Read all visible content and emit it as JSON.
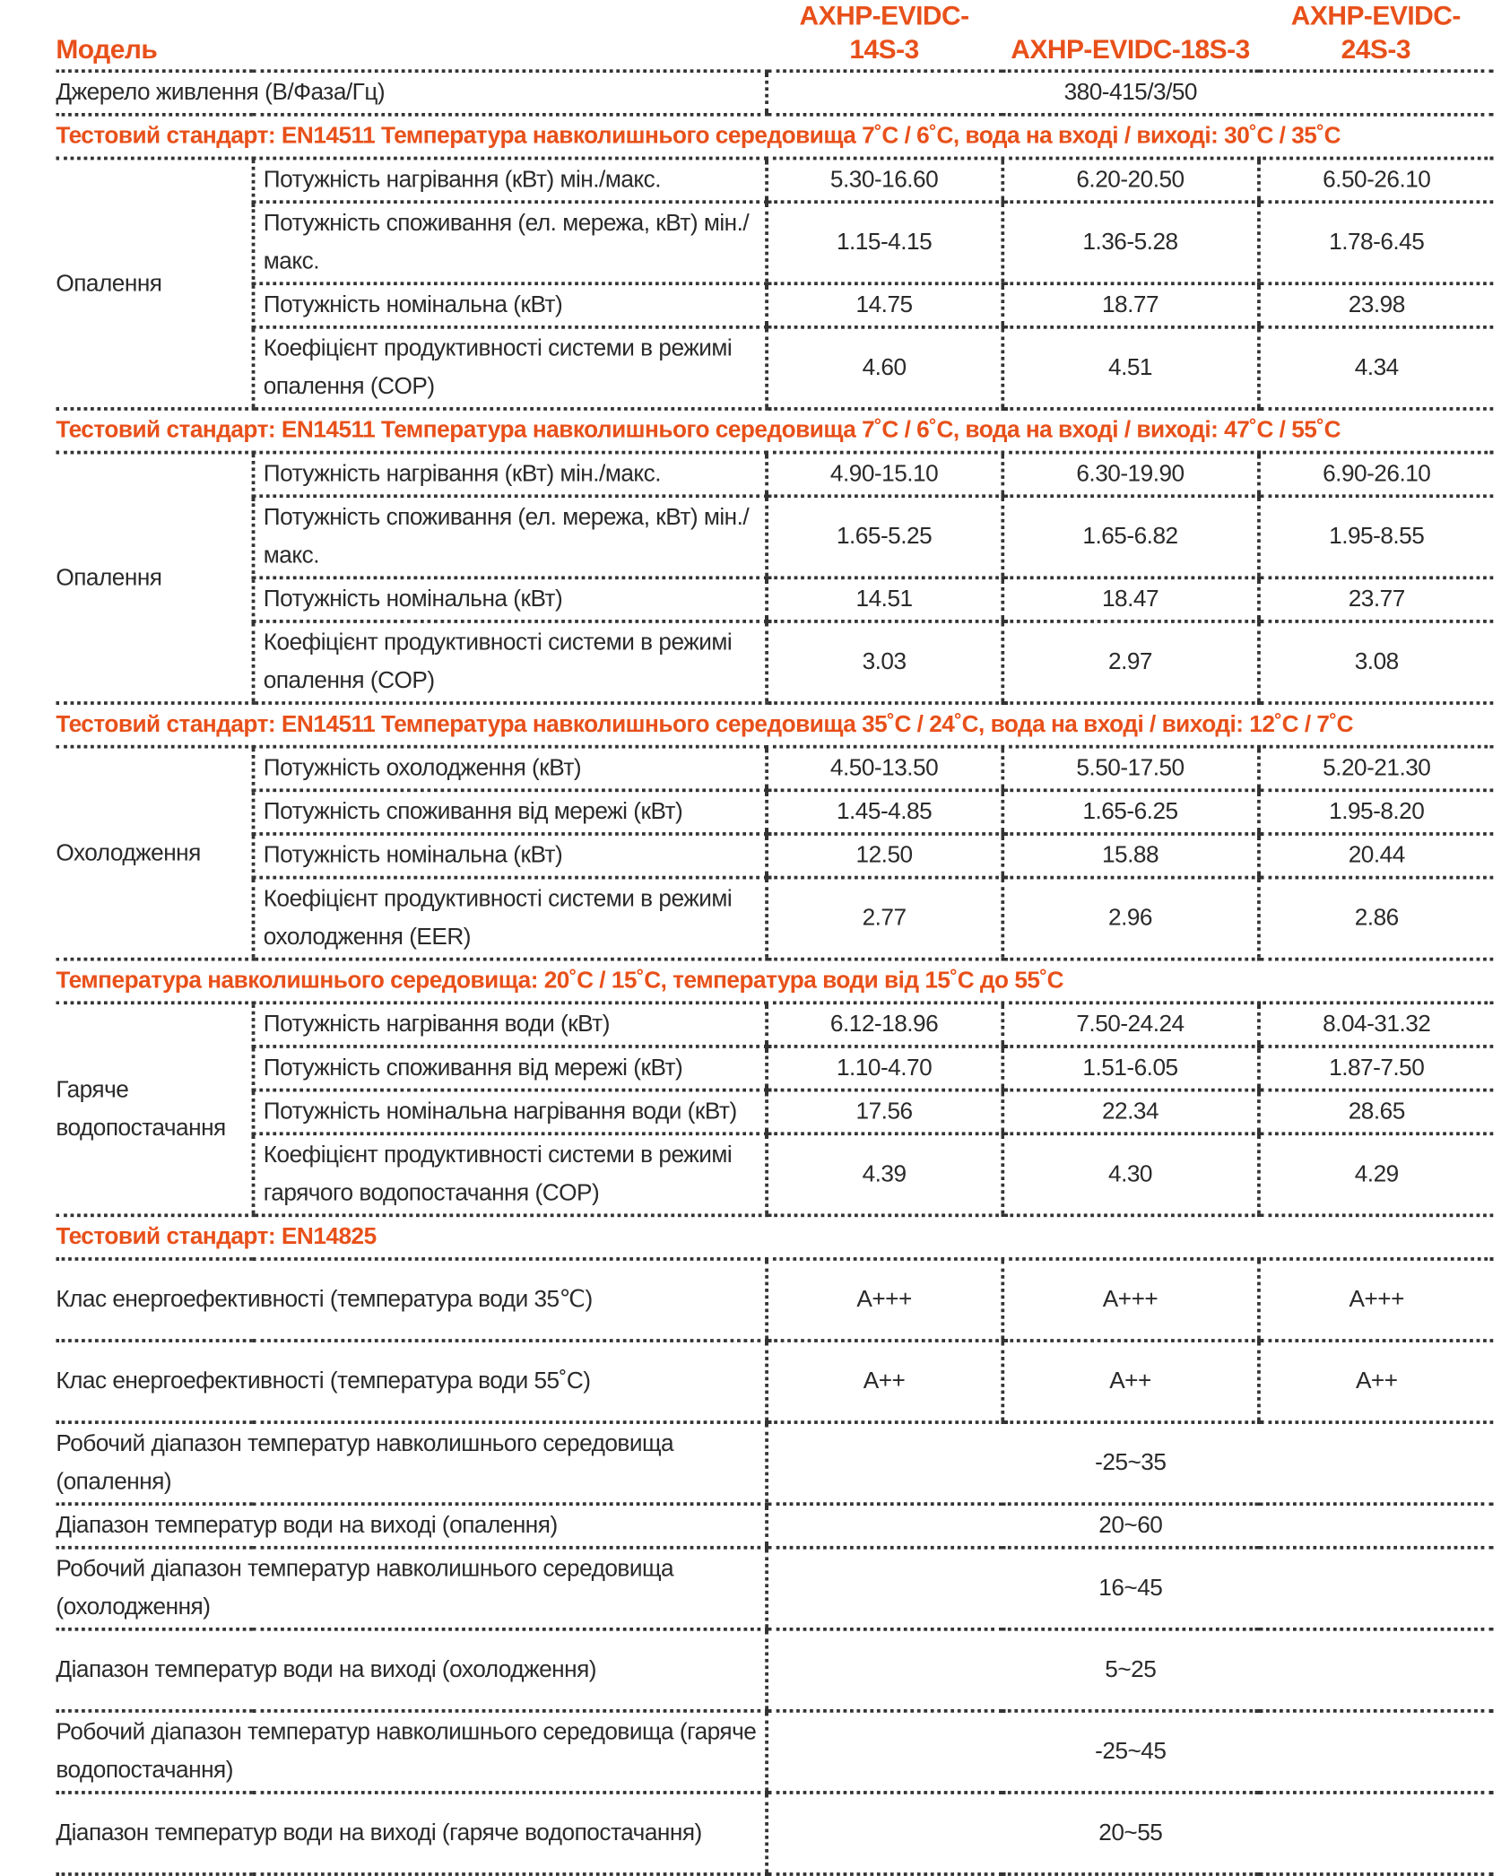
{
  "header": {
    "model_label": "Модель",
    "models": [
      "AXHP-EVIDC-14S-3",
      "AXHP-EVIDC-18S-3",
      "AXHP-EVIDC-24S-3"
    ]
  },
  "power": {
    "label": "Джерело живлення (В/Фаза/Гц)",
    "value": "380-415/3/50"
  },
  "sections": [
    {
      "title": "Тестовий стандарт: EN14511 Температура навколишнього середовища 7˚C / 6˚C, вода на вході / виході: 30˚C / 35˚C",
      "group": "Опалення",
      "rows": [
        {
          "label": "Потужність нагрівання (кВт) мін./макс.",
          "values": [
            "5.30-16.60",
            "6.20-20.50",
            "6.50-26.10"
          ]
        },
        {
          "label": "Потужність споживання (ел. мережа, кВт) мін./макс.",
          "values": [
            "1.15-4.15",
            "1.36-5.28",
            "1.78-6.45"
          ]
        },
        {
          "label": "Потужність номінальна (кВт)",
          "values": [
            "14.75",
            "18.77",
            "23.98"
          ]
        },
        {
          "label": "Коефіцієнт продуктивності системи в режимі  опалення (COP)",
          "values": [
            "4.60",
            "4.51",
            "4.34"
          ]
        }
      ]
    },
    {
      "title": "Тестовий стандарт: EN14511 Температура навколишнього середовища 7˚C / 6˚C, вода на вході / виході: 47˚C / 55˚C",
      "group": "Опалення",
      "rows": [
        {
          "label": "Потужність нагрівання (кВт) мін./макс.",
          "values": [
            "4.90-15.10",
            "6.30-19.90",
            "6.90-26.10"
          ]
        },
        {
          "label": "Потужність споживання (ел. мережа, кВт) мін./макс.",
          "values": [
            "1.65-5.25",
            "1.65-6.82",
            "1.95-8.55"
          ]
        },
        {
          "label": "Потужність номінальна (кВт)",
          "values": [
            "14.51",
            "18.47",
            "23.77"
          ]
        },
        {
          "label": "Коефіцієнт продуктивності системи в режимі  опалення (COP)",
          "values": [
            "3.03",
            "2.97",
            "3.08"
          ]
        }
      ]
    },
    {
      "title": "Тестовий стандарт: EN14511 Температура навколишнього середовища 35˚C / 24˚C, вода на вході / виході: 12˚C / 7˚C",
      "group": "Охолодження",
      "rows": [
        {
          "label": "Потужність охолодження (кВт)",
          "values": [
            "4.50-13.50",
            "5.50-17.50",
            "5.20-21.30"
          ]
        },
        {
          "label": "Потужність споживання від мережі (кВт)",
          "values": [
            "1.45-4.85",
            "1.65-6.25",
            "1.95-8.20"
          ]
        },
        {
          "label": "Потужність номінальна (кВт)",
          "values": [
            "12.50",
            "15.88",
            "20.44"
          ]
        },
        {
          "label": "Коефіцієнт продуктивності системи в режимі охолодження (EER)",
          "values": [
            "2.77",
            "2.96",
            "2.86"
          ]
        }
      ]
    },
    {
      "title": "Температура навколишнього середовища: 20˚C / 15˚C, температура води від 15˚C до 55˚C",
      "group": "Гаряче водопостачання",
      "rows": [
        {
          "label": "Потужність нагрівання води (кВт)",
          "values": [
            "6.12-18.96",
            "7.50-24.24",
            "8.04-31.32"
          ]
        },
        {
          "label": "Потужність споживання від мережі (кВт)",
          "values": [
            "1.10-4.70",
            "1.51-6.05",
            "1.87-7.50"
          ]
        },
        {
          "label": "Потужність номінальна нагрівання води (кВт)",
          "values": [
            "17.56",
            "22.34",
            "28.65"
          ]
        },
        {
          "label": "Коефіцієнт продуктивності системи в режимі  гарячого водопостачання (COP)",
          "values": [
            "4.39",
            "4.30",
            "4.29"
          ]
        }
      ]
    }
  ],
  "en14825": {
    "title": "Тестовий стандарт: EN14825",
    "rows": [
      {
        "label": "Клас енергоефективності (температура води 35℃)",
        "values": [
          "A+++",
          "A+++",
          "A+++"
        ]
      },
      {
        "label": "Клас енергоефективності (температура води 55˚C)",
        "values": [
          "A++",
          "A++",
          "A++"
        ]
      },
      {
        "label": "Робочий діапазон температур навколишнього середовища (опалення)",
        "value": "-25~35"
      },
      {
        "label": "Діапазон температур води на виході (опалення)",
        "value": "20~60"
      },
      {
        "label": "Робочий діапазон температур навколишнього середовища (охолодження)",
        "value": "16~45"
      },
      {
        "label": "Діапазон температур води на виході (охолодження)",
        "value": "5~25"
      },
      {
        "label": "Робочий діапазон температур навколишнього середовища (гаряче водопостачання)",
        "value": "-25~45"
      },
      {
        "label": "Діапазон температур води на виході (гаряче водопостачання)",
        "value": "20~55"
      }
    ]
  },
  "colors": {
    "accent": "#e8501a",
    "text": "#2a2a2a",
    "rule": "#333333"
  }
}
